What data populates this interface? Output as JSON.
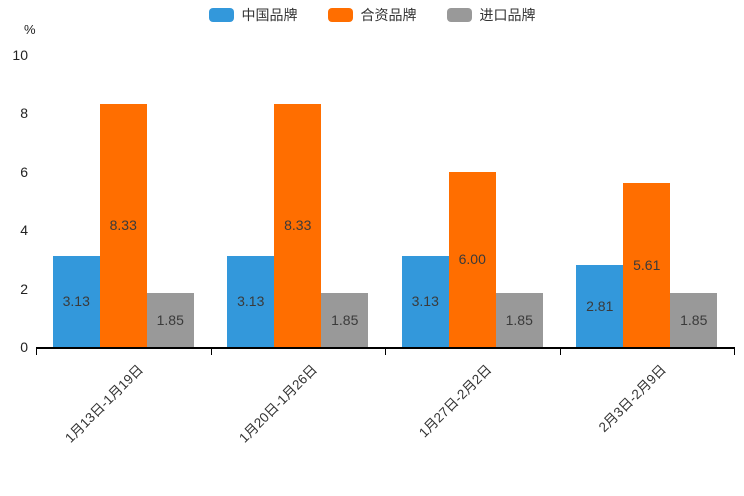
{
  "chart_data": {
    "type": "bar",
    "unit_label": "%",
    "categories": [
      "1月13日-1月19日",
      "1月20日-1月26日",
      "1月27日-2月2日",
      "2月3日-2月9日"
    ],
    "series": [
      {
        "name": "中国品牌",
        "color": "#3398DB",
        "values": [
          3.13,
          3.13,
          3.13,
          2.81
        ]
      },
      {
        "name": "合资品牌",
        "color": "#FF6E00",
        "values": [
          8.33,
          8.33,
          6.0,
          5.61
        ]
      },
      {
        "name": "进口品牌",
        "color": "#999999",
        "values": [
          1.85,
          1.85,
          1.85,
          1.85
        ]
      }
    ],
    "value_labels": [
      "3.13",
      "8.33",
      "6.00",
      "5.61",
      "2.81",
      "1.85"
    ],
    "value_label_position": "inside-center",
    "value_label_decimals": 2,
    "ylim": [
      0,
      10
    ],
    "yticks": [
      0,
      2,
      4,
      6,
      8,
      10
    ],
    "grid": false,
    "legend_position": "top",
    "x_label_rotation": -45
  }
}
